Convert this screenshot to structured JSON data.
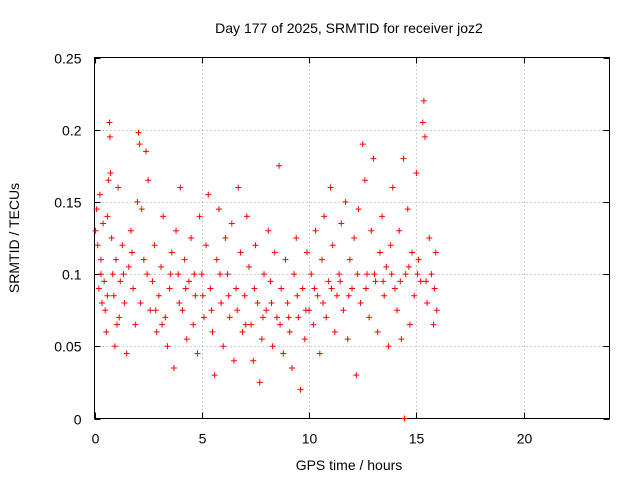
{
  "chart_data": {
    "type": "scatter",
    "title": "Day 177 of 2025, SRMTID for receiver joz2",
    "xlabel": "GPS time / hours",
    "ylabel": "SRMTID / TECUs",
    "xlim": [
      0,
      24
    ],
    "ylim": [
      0,
      0.25
    ],
    "xticks": [
      0,
      5,
      10,
      15,
      20
    ],
    "yticks": [
      0,
      0.05,
      0.1,
      0.15,
      0.2,
      0.25
    ],
    "xtick_labels": [
      "0",
      "5",
      "10",
      "15",
      "20"
    ],
    "ytick_labels": [
      "0",
      "0.05",
      "0.1",
      "0.15",
      "0.2",
      "0.25"
    ],
    "grid": true,
    "marker": "+",
    "series": [
      {
        "name": "SRMTID",
        "color": "#ff0000",
        "points": [
          [
            0.05,
            0.13
          ],
          [
            0.1,
            0.145
          ],
          [
            0.15,
            0.12
          ],
          [
            0.2,
            0.09
          ],
          [
            0.25,
            0.155
          ],
          [
            0.3,
            0.11
          ],
          [
            0.35,
            0.08
          ],
          [
            0.4,
            0.135
          ],
          [
            0.45,
            0.095
          ],
          [
            0.5,
            0.075
          ],
          [
            0.55,
            0.06
          ],
          [
            0.6,
            0.14
          ],
          [
            0.65,
            0.165
          ],
          [
            0.7,
            0.205
          ],
          [
            0.72,
            0.195
          ],
          [
            0.75,
            0.17
          ],
          [
            0.8,
            0.125
          ],
          [
            0.85,
            0.1
          ],
          [
            0.9,
            0.085
          ],
          [
            0.95,
            0.05
          ],
          [
            1.0,
            0.11
          ],
          [
            1.1,
            0.16
          ],
          [
            1.15,
            0.07
          ],
          [
            1.2,
            0.095
          ],
          [
            1.3,
            0.12
          ],
          [
            1.4,
            0.08
          ],
          [
            1.5,
            0.045
          ],
          [
            1.6,
            0.105
          ],
          [
            1.7,
            0.13
          ],
          [
            1.8,
            0.09
          ],
          [
            1.9,
            0.065
          ],
          [
            2.0,
            0.15
          ],
          [
            2.05,
            0.198
          ],
          [
            2.1,
            0.19
          ],
          [
            2.2,
            0.145
          ],
          [
            2.3,
            0.11
          ],
          [
            2.4,
            0.185
          ],
          [
            2.5,
            0.165
          ],
          [
            2.6,
            0.075
          ],
          [
            2.7,
            0.095
          ],
          [
            2.8,
            0.12
          ],
          [
            2.9,
            0.06
          ],
          [
            3.0,
            0.085
          ],
          [
            3.1,
            0.105
          ],
          [
            3.2,
            0.14
          ],
          [
            3.3,
            0.07
          ],
          [
            3.4,
            0.05
          ],
          [
            3.5,
            0.09
          ],
          [
            3.6,
            0.115
          ],
          [
            3.7,
            0.035
          ],
          [
            3.8,
            0.13
          ],
          [
            3.9,
            0.1
          ],
          [
            4.0,
            0.16
          ],
          [
            4.1,
            0.075
          ],
          [
            4.2,
            0.11
          ],
          [
            4.3,
            0.055
          ],
          [
            4.4,
            0.095
          ],
          [
            4.5,
            0.125
          ],
          [
            4.6,
            0.065
          ],
          [
            4.7,
            0.085
          ],
          [
            4.8,
            0.045
          ],
          [
            4.9,
            0.14
          ],
          [
            5.0,
            0.1
          ],
          [
            5.1,
            0.07
          ],
          [
            5.2,
            0.12
          ],
          [
            5.3,
            0.155
          ],
          [
            5.4,
            0.09
          ],
          [
            5.5,
            0.06
          ],
          [
            5.6,
            0.03
          ],
          [
            5.7,
            0.11
          ],
          [
            5.8,
            0.145
          ],
          [
            5.9,
            0.08
          ],
          [
            6.0,
            0.05
          ],
          [
            6.1,
            0.125
          ],
          [
            6.2,
            0.1
          ],
          [
            6.3,
            0.07
          ],
          [
            6.4,
            0.135
          ],
          [
            6.5,
            0.04
          ],
          [
            6.6,
            0.09
          ],
          [
            6.7,
            0.16
          ],
          [
            6.8,
            0.115
          ],
          [
            6.9,
            0.06
          ],
          [
            7.0,
            0.085
          ],
          [
            7.1,
            0.14
          ],
          [
            7.2,
            0.105
          ],
          [
            7.3,
            0.065
          ],
          [
            7.4,
            0.04
          ],
          [
            7.5,
            0.12
          ],
          [
            7.6,
            0.08
          ],
          [
            7.7,
            0.025
          ],
          [
            7.8,
            0.055
          ],
          [
            7.9,
            0.1
          ],
          [
            8.0,
            0.075
          ],
          [
            8.1,
            0.13
          ],
          [
            8.2,
            0.095
          ],
          [
            8.3,
            0.05
          ],
          [
            8.4,
            0.115
          ],
          [
            8.5,
            0.07
          ],
          [
            8.6,
            0.175
          ],
          [
            8.7,
            0.09
          ],
          [
            8.8,
            0.045
          ],
          [
            8.9,
            0.11
          ],
          [
            9.0,
            0.08
          ],
          [
            9.1,
            0.06
          ],
          [
            9.2,
            0.035
          ],
          [
            9.3,
            0.1
          ],
          [
            9.4,
            0.125
          ],
          [
            9.5,
            0.07
          ],
          [
            9.6,
            0.02
          ],
          [
            9.7,
            0.09
          ],
          [
            9.8,
            0.055
          ],
          [
            9.9,
            0.115
          ],
          [
            10.0,
            0.075
          ],
          [
            10.1,
            0.1
          ],
          [
            10.2,
            0.065
          ],
          [
            10.3,
            0.13
          ],
          [
            10.4,
            0.085
          ],
          [
            10.5,
            0.045
          ],
          [
            10.6,
            0.11
          ],
          [
            10.7,
            0.14
          ],
          [
            10.8,
            0.07
          ],
          [
            10.9,
            0.095
          ],
          [
            11.0,
            0.16
          ],
          [
            11.1,
            0.12
          ],
          [
            11.2,
            0.06
          ],
          [
            11.3,
            0.085
          ],
          [
            11.4,
            0.1
          ],
          [
            11.5,
            0.135
          ],
          [
            11.6,
            0.075
          ],
          [
            11.7,
            0.15
          ],
          [
            11.8,
            0.055
          ],
          [
            11.9,
            0.11
          ],
          [
            12.0,
            0.09
          ],
          [
            12.1,
            0.125
          ],
          [
            12.2,
            0.03
          ],
          [
            12.3,
            0.145
          ],
          [
            12.4,
            0.08
          ],
          [
            12.5,
            0.19
          ],
          [
            12.6,
            0.165
          ],
          [
            12.7,
            0.1
          ],
          [
            12.8,
            0.07
          ],
          [
            12.9,
            0.13
          ],
          [
            13.0,
            0.18
          ],
          [
            13.1,
            0.095
          ],
          [
            13.2,
            0.06
          ],
          [
            13.3,
            0.115
          ],
          [
            13.4,
            0.14
          ],
          [
            13.5,
            0.085
          ],
          [
            13.6,
            0.105
          ],
          [
            13.7,
            0.05
          ],
          [
            13.8,
            0.12
          ],
          [
            13.9,
            0.16
          ],
          [
            14.0,
            0.09
          ],
          [
            14.1,
            0.075
          ],
          [
            14.2,
            0.13
          ],
          [
            14.3,
            0.055
          ],
          [
            14.4,
            0.18
          ],
          [
            14.5,
            0.1
          ],
          [
            14.6,
            0.145
          ],
          [
            14.7,
            0.065
          ],
          [
            14.8,
            0.115
          ],
          [
            14.9,
            0.085
          ],
          [
            15.0,
            0.17
          ],
          [
            15.1,
            0.11
          ],
          [
            15.2,
            0.095
          ],
          [
            15.3,
            0.205
          ],
          [
            15.35,
            0.22
          ],
          [
            15.4,
            0.195
          ],
          [
            15.5,
            0.08
          ],
          [
            15.6,
            0.125
          ],
          [
            15.7,
            0.1
          ],
          [
            15.8,
            0.065
          ],
          [
            15.85,
            0.09
          ],
          [
            15.9,
            0.115
          ],
          [
            15.95,
            0.075
          ],
          [
            14.45,
            0.0
          ],
          [
            0.3,
            0.1
          ],
          [
            0.6,
            0.085
          ],
          [
            1.05,
            0.065
          ],
          [
            1.35,
            0.1
          ],
          [
            1.75,
            0.115
          ],
          [
            2.15,
            0.08
          ],
          [
            2.45,
            0.1
          ],
          [
            2.85,
            0.075
          ],
          [
            3.15,
            0.065
          ],
          [
            3.55,
            0.1
          ],
          [
            3.95,
            0.08
          ],
          [
            4.25,
            0.09
          ],
          [
            4.65,
            0.1
          ],
          [
            5.05,
            0.085
          ],
          [
            5.45,
            0.075
          ],
          [
            5.85,
            0.1
          ],
          [
            6.25,
            0.085
          ],
          [
            6.65,
            0.075
          ],
          [
            7.05,
            0.065
          ],
          [
            7.45,
            0.09
          ],
          [
            7.85,
            0.07
          ],
          [
            8.25,
            0.08
          ],
          [
            8.65,
            0.065
          ],
          [
            9.05,
            0.07
          ],
          [
            9.45,
            0.085
          ],
          [
            9.85,
            0.075
          ],
          [
            10.25,
            0.09
          ],
          [
            10.65,
            0.08
          ],
          [
            11.05,
            0.09
          ],
          [
            11.45,
            0.095
          ],
          [
            11.85,
            0.085
          ],
          [
            12.25,
            0.1
          ],
          [
            12.65,
            0.09
          ],
          [
            13.05,
            0.1
          ],
          [
            13.45,
            0.095
          ],
          [
            13.85,
            0.1
          ],
          [
            14.25,
            0.095
          ],
          [
            14.65,
            0.105
          ],
          [
            15.05,
            0.1
          ],
          [
            15.45,
            0.095
          ]
        ]
      }
    ]
  }
}
